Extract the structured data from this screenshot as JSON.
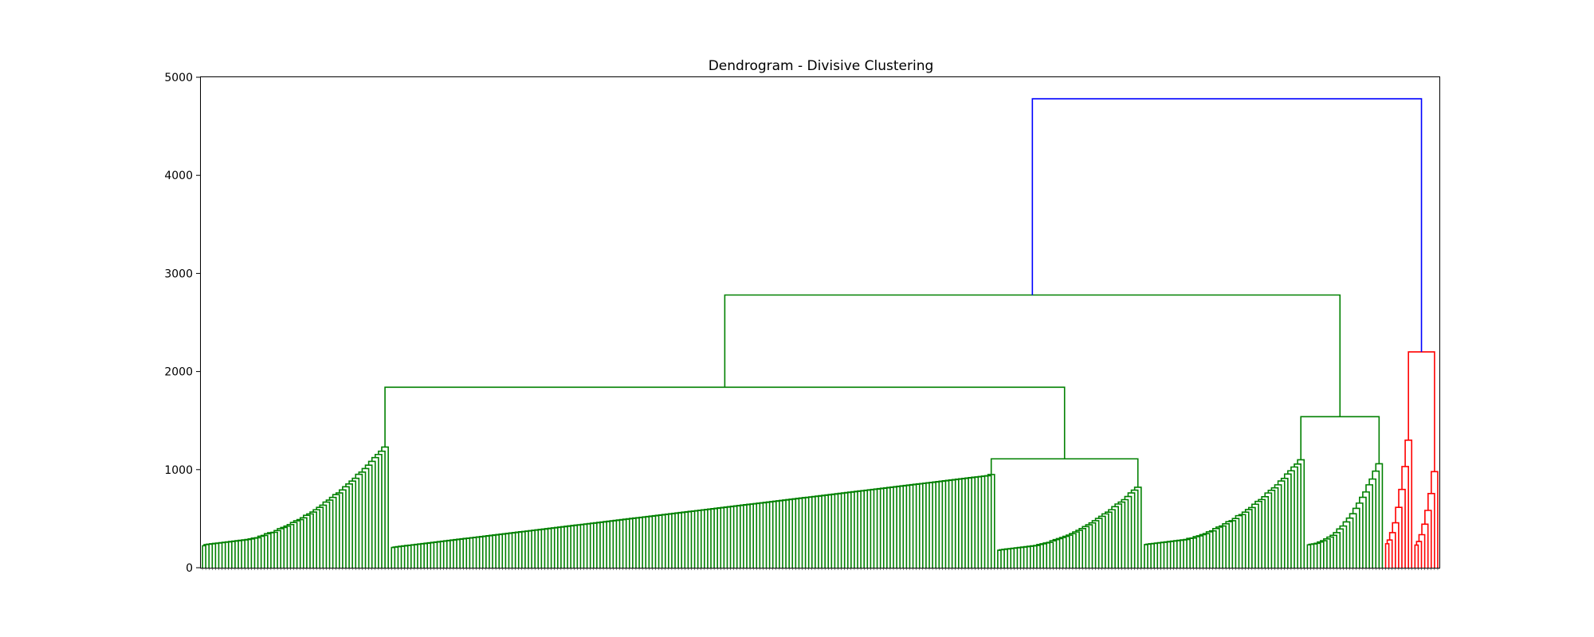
{
  "chart_data": {
    "type": "dendrogram",
    "title": "Dendrogram - Divisive Clustering",
    "xlabel": "",
    "ylabel": "",
    "ylim": [
      0,
      5000
    ],
    "yticks": [
      0,
      1000,
      2000,
      3000,
      4000,
      5000
    ],
    "grid": false,
    "colors": {
      "left_cluster": "#008000",
      "right_cluster": "#ff0000",
      "root": "#0000ff"
    },
    "leaf_count": 380,
    "root_height": 4780,
    "top_level": [
      {
        "name": "green-cluster",
        "color": "#008000",
        "height": 2780,
        "children": [
          {
            "height": 1840,
            "children": [
              {
                "height": 1230,
                "leaf_range": [
                  0,
                  58
                ]
              },
              {
                "height": 1110,
                "children": [
                  {
                    "height": 950,
                    "leaf_range": [
                      58,
                      244
                    ]
                  },
                  {
                    "height": 820,
                    "leaf_range": [
                      244,
                      289
                    ]
                  }
                ]
              }
            ]
          },
          {
            "height": 1540,
            "children": [
              {
                "height": 1100,
                "leaf_range": [
                  289,
                  339
                ]
              },
              {
                "height": 1060,
                "leaf_range": [
                  339,
                  363
                ]
              }
            ]
          }
        ]
      },
      {
        "name": "red-cluster",
        "color": "#ff0000",
        "height": 2200,
        "children": [
          {
            "height": 1300,
            "leaf_range": [
              363,
              372
            ]
          },
          {
            "height": 980,
            "leaf_range": [
              372,
              380
            ]
          }
        ]
      }
    ]
  }
}
